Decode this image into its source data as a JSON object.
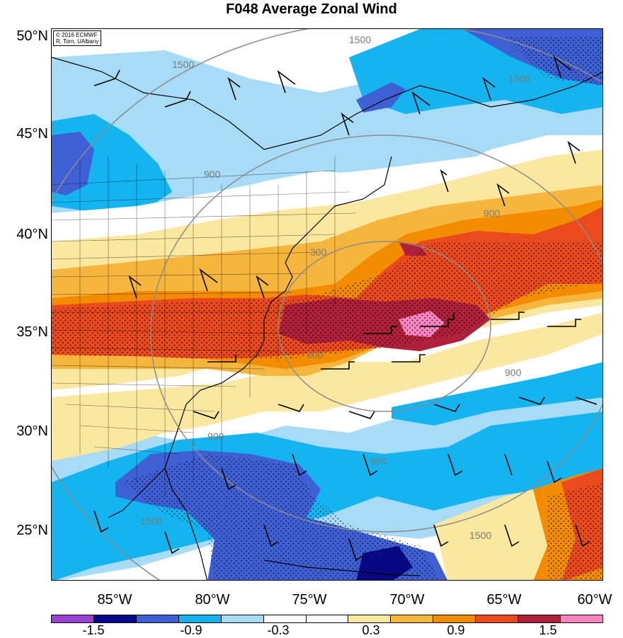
{
  "title": "F048 Average Zonal Wind",
  "credit": {
    "line1": "© 2016 ECMWF",
    "line2": "R. Torn, UAlbany"
  },
  "lat_labels": [
    "50°N",
    "45°N",
    "40°N",
    "35°N",
    "30°N",
    "25°N"
  ],
  "lon_labels": [
    "85°W",
    "80°W",
    "75°W",
    "70°W",
    "65°W",
    "60°W"
  ],
  "colorbar": {
    "colors": [
      "#9b3fd6",
      "#08088c",
      "#3f5fd4",
      "#14b4f0",
      "#a8dcf6",
      "#ffffff",
      "#ffffff",
      "#fbe8a0",
      "#f6b63e",
      "#f48c00",
      "#ea4a1e",
      "#b0203a",
      "#f884c0"
    ],
    "labels": [
      "-1.5",
      "-0.9",
      "-0.3",
      "0.3",
      "0.9",
      "1.5"
    ]
  },
  "contour_labels": [
    "1500",
    "1500",
    "1500",
    "1500",
    "1500",
    "900",
    "900",
    "900",
    "900",
    "900",
    "300",
    "300"
  ]
}
